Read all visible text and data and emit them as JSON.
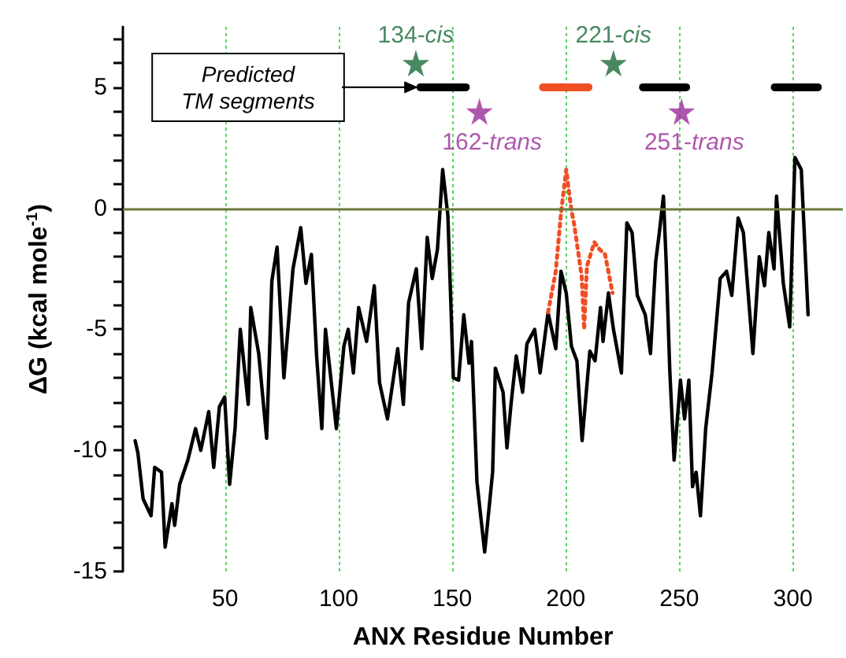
{
  "chart_data": {
    "type": "line",
    "xlabel": "ANX Residue Number",
    "ylabel": "ΔG (kcal mole$^{-1}$)",
    "xlim": [
      5,
      322
    ],
    "xticks": [
      50,
      100,
      150,
      200,
      250,
      300
    ],
    "ylim": [
      -15,
      7.5
    ],
    "yticks": [
      -15,
      {
        "value": -14,
        "label": null
      },
      {
        "value": -13,
        "label": null
      },
      {
        "value": -12,
        "label": null
      },
      {
        "value": -11,
        "label": null
      },
      -10,
      {
        "value": -9,
        "label": null
      },
      {
        "value": -8,
        "label": null
      },
      {
        "value": -7,
        "label": null
      },
      {
        "value": -6,
        "label": null
      },
      -5,
      {
        "value": -4,
        "label": null
      },
      {
        "value": -3,
        "label": null
      },
      {
        "value": -2,
        "label": null
      },
      {
        "value": -1,
        "label": null
      },
      0,
      {
        "value": 1,
        "label": null
      },
      {
        "value": 2,
        "label": null
      },
      {
        "value": 3,
        "label": null
      },
      {
        "value": 4,
        "label": null
      },
      5,
      {
        "value": 6,
        "label": null
      },
      {
        "value": 7,
        "label": null
      }
    ],
    "grid": "x",
    "ref_lines": [
      {
        "axis": "y",
        "value": 0,
        "color": "#6b7a3a"
      }
    ],
    "series": [
      {
        "color": "#000000",
        "marker": "none",
        "line_style": "solid",
        "x": [
          10.4,
          11.6,
          13.9,
          17.4,
          19,
          22,
          23.6,
          26.6,
          27.8,
          30,
          33.6,
          37,
          39.3,
          42.8,
          45,
          47.5,
          49.8,
          52,
          54.4,
          56.7,
          60.2,
          61.3,
          64.8,
          68.3,
          70.6,
          72.9,
          75.9,
          79.9,
          83.3,
          85.6,
          88,
          90.3,
          92.6,
          94.2,
          99,
          102.3,
          104.2,
          106.5,
          108.8,
          112.3,
          115.7,
          118,
          121.5,
          126,
          128.5,
          130.8,
          134.2,
          136.6,
          139,
          141.2,
          143.5,
          145.8,
          148.1,
          150.5,
          152.8,
          155.1,
          157.4,
          158.5,
          160.9,
          164.3,
          167.8,
          169,
          172.4,
          174.1,
          175.9,
          178.2,
          181,
          182.9,
          186.3,
          188.7,
          192.2,
          195.6,
          197.9,
          200.2,
          202.5,
          204.9,
          207.2,
          210.6,
          212.9,
          215.3,
          216.4,
          218.8,
          221,
          224.5,
          226.9,
          229.2,
          231.5,
          235,
          237.3,
          239.6,
          241.2,
          243,
          244.2,
          245.8,
          247.7,
          250.5,
          252.3,
          254.2,
          255.8,
          257.4,
          259.3,
          261.6,
          264.4,
          268,
          270.8,
          273.1,
          275.9,
          278.2,
          282.4,
          285.2,
          287.5,
          289.4,
          291.7,
          292.8,
          295.8,
          298.6,
          300.9,
          303.7,
          306.7
        ],
        "values": [
          -9.6,
          -10.1,
          -12,
          -12.7,
          -10.7,
          -10.9,
          -14,
          -12.2,
          -13.1,
          -11.4,
          -10.4,
          -9.1,
          -10,
          -8.4,
          -10.7,
          -8.2,
          -7.8,
          -11.4,
          -9.1,
          -5,
          -8.1,
          -4.1,
          -6,
          -9.5,
          -3,
          -1.6,
          -7,
          -2.5,
          -0.8,
          -3.1,
          -1.9,
          -6.1,
          -9.1,
          -5,
          -9.1,
          -5.7,
          -5,
          -6.8,
          -4.1,
          -5.5,
          -3.2,
          -7.2,
          -8.7,
          -5.8,
          -8.1,
          -3.9,
          -2.5,
          -5.8,
          -1.2,
          -2.9,
          -1.7,
          1.6,
          -0.3,
          -7,
          -7.1,
          -4.4,
          -6.4,
          -5.5,
          -11.3,
          -14.2,
          -10.9,
          -6.6,
          -7.6,
          -9.9,
          -8.1,
          -6.1,
          -7.6,
          -5.6,
          -5,
          -6.8,
          -4.3,
          -5.8,
          -2.6,
          -3.5,
          -5.7,
          -6.3,
          -9.6,
          -5.9,
          -6.3,
          -4.1,
          -5.5,
          -3.5,
          -5,
          -6.8,
          -0.6,
          -1,
          -3.6,
          -4.4,
          -6,
          -2.2,
          -1,
          0.5,
          -2.2,
          -6.7,
          -10.4,
          -7.1,
          -8.7,
          -7.1,
          -11.5,
          -10.9,
          -12.7,
          -9.1,
          -6.8,
          -2.9,
          -2.6,
          -3.6,
          -0.4,
          -1,
          -6,
          -2,
          -3.2,
          -1,
          -2.5,
          0.5,
          -3.1,
          -4.9,
          2.1,
          1.6,
          -4.4
        ]
      },
      {
        "color": "#f04e23",
        "marker": "none",
        "line_style": "dotted",
        "x": [
          192.2,
          195.6,
          197.9,
          200.2,
          202.5,
          203.6,
          207,
          208.1,
          209.3,
          212.6,
          214.9,
          217.3,
          220.6
        ],
        "values": [
          -4.3,
          -2.6,
          -0.2,
          1.6,
          -0.1,
          -0.6,
          -2.8,
          -5,
          -2.4,
          -1.4,
          -1.7,
          -1.9,
          -3.5
        ]
      },
      {
        "color": "#000000",
        "marker": "none",
        "line_style": "solid",
        "x": [
          136,
          156
        ],
        "values": [
          5,
          5
        ]
      },
      {
        "color": "#f04e23",
        "marker": "none",
        "line_style": "solid",
        "x": [
          190,
          210
        ],
        "values": [
          5,
          5
        ]
      },
      {
        "color": "#000000",
        "marker": "none",
        "line_style": "solid",
        "x": [
          234,
          253
        ],
        "values": [
          5,
          5
        ]
      },
      {
        "color": "#000000",
        "marker": "none",
        "line_style": "solid",
        "x": [
          292,
          311
        ],
        "values": [
          5,
          5
        ]
      },
      {
        "type": "scatter",
        "color": "#1a6b3a",
        "marker": "star",
        "x": [
          134,
          221
        ],
        "values": [
          6,
          6
        ]
      },
      {
        "type": "scatter",
        "color": "#9b2d9b",
        "marker": "star",
        "x": [
          162,
          251
        ],
        "values": [
          4,
          4
        ]
      }
    ],
    "annotations": [
      {
        "text": "134-cis",
        "x": 134,
        "y": 6
      },
      {
        "text": "221-cis",
        "x": 221,
        "y": 6
      },
      {
        "text": "162-trans",
        "x": 162,
        "y": 4
      },
      {
        "text": "251-trans",
        "x": 251,
        "y": 4
      },
      "Predicted TM segments"
    ]
  }
}
